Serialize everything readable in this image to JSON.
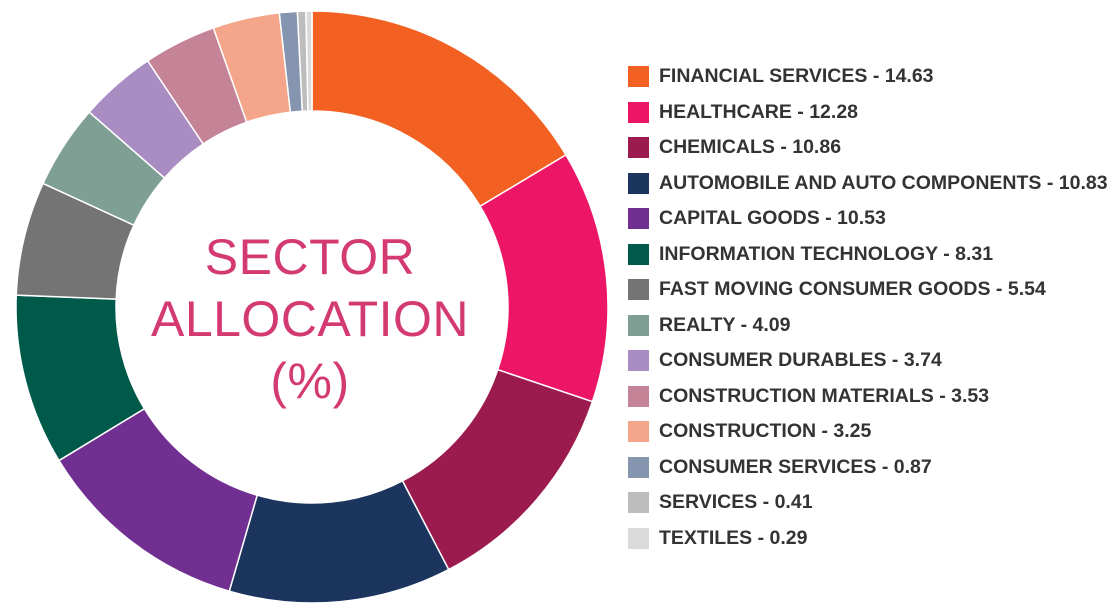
{
  "chart_data": {
    "type": "pie",
    "title": "SECTOR ALLOCATION (%)",
    "title_lines": [
      "SECTOR",
      "ALLOCATION",
      "(%)"
    ],
    "donut": true,
    "legend_position": "right",
    "slices": [
      {
        "label": "FINANCIAL SERVICES",
        "value": 14.63,
        "color": "#f26122",
        "legend_text": "FINANCIAL SERVICES - 14.63"
      },
      {
        "label": "HEALTHCARE",
        "value": 12.28,
        "color": "#ec1566",
        "legend_text": "HEALTHCARE - 12.28"
      },
      {
        "label": "CHEMICALS",
        "value": 10.86,
        "color": "#9b1b4e",
        "legend_text": "CHEMICALS - 10.86"
      },
      {
        "label": "AUTOMOBILE AND AUTO COMPONENTS",
        "value": 10.83,
        "color": "#1c355e",
        "legend_text": "AUTOMOBILE AND AUTO COMPONENTS - 10.83"
      },
      {
        "label": "CAPITAL GOODS",
        "value": 10.53,
        "color": "#702f91",
        "legend_text": "CAPITAL GOODS - 10.53"
      },
      {
        "label": "INFORMATION TECHNOLOGY",
        "value": 8.31,
        "color": "#005a4a",
        "legend_text": "INFORMATION TECHNOLOGY - 8.31"
      },
      {
        "label": "FAST MOVING CONSUMER GOODS",
        "value": 5.54,
        "color": "#747474",
        "legend_text": "FAST MOVING CONSUMER GOODS - 5.54"
      },
      {
        "label": "REALTY",
        "value": 4.09,
        "color": "#7f9f95",
        "legend_text": "REALTY - 4.09"
      },
      {
        "label": "CONSUMER DURABLES",
        "value": 3.74,
        "color": "#a98cc2",
        "legend_text": "CONSUMER DURABLES - 3.74"
      },
      {
        "label": "CONSTRUCTION MATERIALS",
        "value": 3.53,
        "color": "#c58398",
        "legend_text": "CONSTRUCTION MATERIALS - 3.53"
      },
      {
        "label": "CONSTRUCTION",
        "value": 3.25,
        "color": "#f5a58a",
        "legend_text": "CONSTRUCTION - 3.25"
      },
      {
        "label": "CONSUMER SERVICES",
        "value": 0.87,
        "color": "#8595b0",
        "legend_text": "CONSUMER SERVICES - 0.87"
      },
      {
        "label": "SERVICES",
        "value": 0.41,
        "color": "#bdbdbd",
        "legend_text": "SERVICES - 0.41"
      },
      {
        "label": "TEXTILES",
        "value": 0.29,
        "color": "#dadada",
        "legend_text": "TEXTILES - 0.29"
      }
    ]
  }
}
